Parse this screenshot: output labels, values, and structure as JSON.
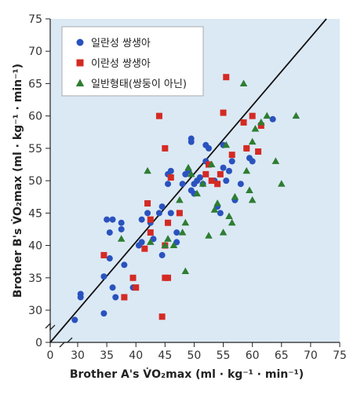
{
  "chart_data": {
    "type": "scatter",
    "xlabel": "Brother A's V̇O₂max (ml · kg⁻¹ · min⁻¹)",
    "ylabel": "Brother B's V̇O₂max (ml · kg⁻¹ · min⁻¹)",
    "xlim": [
      0,
      75
    ],
    "ylim": [
      0,
      75
    ],
    "axis_break": true,
    "x_ticks": [
      "0",
      "30",
      "35",
      "40",
      "45",
      "50",
      "55",
      "60",
      "65",
      "70",
      "75"
    ],
    "y_ticks": [
      "0",
      "30",
      "35",
      "40",
      "45",
      "50",
      "55",
      "60",
      "65",
      "70",
      "75"
    ],
    "grid": false,
    "legend_position": "top-left",
    "identity_line": true,
    "colors": {
      "plot_bg": "#dbe9f5",
      "blue": "#2a52be",
      "red": "#d42a24",
      "green": "#2e7d32"
    },
    "series": [
      {
        "name": "일란성 쌍생아",
        "marker": "circle",
        "color": "#2a52be",
        "points": [
          [
            29.5,
            28.5
          ],
          [
            30.5,
            32.0
          ],
          [
            30.5,
            32.5
          ],
          [
            34.5,
            29.5
          ],
          [
            34.5,
            35.2
          ],
          [
            35.0,
            44.0
          ],
          [
            35.5,
            42.0
          ],
          [
            35.5,
            38.0
          ],
          [
            36.0,
            44.0
          ],
          [
            36.0,
            33.5
          ],
          [
            36.5,
            32.0
          ],
          [
            37.5,
            43.5
          ],
          [
            37.5,
            42.5
          ],
          [
            38.0,
            37.0
          ],
          [
            39.5,
            33.5
          ],
          [
            40.5,
            40.0
          ],
          [
            41.0,
            40.5
          ],
          [
            41.0,
            44.0
          ],
          [
            42.0,
            45.0
          ],
          [
            42.5,
            43.5
          ],
          [
            43.0,
            41.0
          ],
          [
            44.0,
            45.0
          ],
          [
            44.5,
            38.5
          ],
          [
            44.5,
            46.0
          ],
          [
            45.5,
            49.5
          ],
          [
            45.5,
            51.0
          ],
          [
            46.0,
            51.5
          ],
          [
            46.0,
            45.0
          ],
          [
            47.0,
            40.5
          ],
          [
            47.0,
            42.0
          ],
          [
            48.0,
            49.5
          ],
          [
            48.5,
            51.0
          ],
          [
            49.0,
            51.5
          ],
          [
            49.5,
            56.5
          ],
          [
            49.5,
            56.0
          ],
          [
            49.5,
            48.5
          ],
          [
            50.0,
            48.0
          ],
          [
            50.5,
            50.0
          ],
          [
            51.0,
            50.5
          ],
          [
            51.5,
            49.5
          ],
          [
            52.0,
            55.5
          ],
          [
            52.0,
            53.0
          ],
          [
            53.5,
            50.0
          ],
          [
            54.0,
            46.0
          ],
          [
            54.5,
            45.0
          ],
          [
            55.0,
            52.0
          ],
          [
            55.0,
            55.5
          ],
          [
            55.5,
            50.0
          ],
          [
            56.0,
            51.5
          ],
          [
            56.5,
            53.0
          ],
          [
            57.0,
            47.0
          ],
          [
            58.0,
            49.5
          ],
          [
            59.5,
            53.5
          ],
          [
            60.0,
            53.0
          ],
          [
            63.5,
            59.5
          ],
          [
            50.0,
            49.5
          ],
          [
            52.5,
            55.0
          ],
          [
            59.0,
            55.0
          ]
        ]
      },
      {
        "name": "이란성 쌍생아",
        "marker": "square",
        "color": "#d42a24",
        "points": [
          [
            34.5,
            38.5
          ],
          [
            38.0,
            32.0
          ],
          [
            39.5,
            35.0
          ],
          [
            40.0,
            33.5
          ],
          [
            41.5,
            39.5
          ],
          [
            42.0,
            46.5
          ],
          [
            42.5,
            44.0
          ],
          [
            42.5,
            42.0
          ],
          [
            44.0,
            60.0
          ],
          [
            44.5,
            29.0
          ],
          [
            45.0,
            55.0
          ],
          [
            45.0,
            40.0
          ],
          [
            45.0,
            35.0
          ],
          [
            45.5,
            35.0
          ],
          [
            45.5,
            43.5
          ],
          [
            46.0,
            50.5
          ],
          [
            52.0,
            51.0
          ],
          [
            52.5,
            52.5
          ],
          [
            53.0,
            50.0
          ],
          [
            54.0,
            49.5
          ],
          [
            54.5,
            51.0
          ],
          [
            55.0,
            60.5
          ],
          [
            55.5,
            66.0
          ],
          [
            56.5,
            54.0
          ],
          [
            58.5,
            59.0
          ],
          [
            59.0,
            55.0
          ],
          [
            60.0,
            60.0
          ],
          [
            61.0,
            54.5
          ],
          [
            61.5,
            58.5
          ],
          [
            47.5,
            45.0
          ]
        ]
      },
      {
        "name": "일반형태(쌍둥이 아닌)",
        "marker": "triangle",
        "color": "#2e7d32",
        "points": [
          [
            37.5,
            41.0
          ],
          [
            42.0,
            51.5
          ],
          [
            42.5,
            40.5
          ],
          [
            45.0,
            40.0
          ],
          [
            45.5,
            41.0
          ],
          [
            47.5,
            47.0
          ],
          [
            48.0,
            42.0
          ],
          [
            48.5,
            43.5
          ],
          [
            48.5,
            36.0
          ],
          [
            49.0,
            52.0
          ],
          [
            49.5,
            51.0
          ],
          [
            50.5,
            48.0
          ],
          [
            51.5,
            49.5
          ],
          [
            52.5,
            41.5
          ],
          [
            53.0,
            52.5
          ],
          [
            53.5,
            45.5
          ],
          [
            54.0,
            46.5
          ],
          [
            55.0,
            42.0
          ],
          [
            55.5,
            55.5
          ],
          [
            56.0,
            44.5
          ],
          [
            56.5,
            43.5
          ],
          [
            57.0,
            47.5
          ],
          [
            58.5,
            65.0
          ],
          [
            59.0,
            51.5
          ],
          [
            59.5,
            48.5
          ],
          [
            60.0,
            47.0
          ],
          [
            60.0,
            56.0
          ],
          [
            61.5,
            59.0
          ],
          [
            62.5,
            60.0
          ],
          [
            64.0,
            53.0
          ],
          [
            65.0,
            49.5
          ],
          [
            67.5,
            60.0
          ],
          [
            60.5,
            58.0
          ],
          [
            46.5,
            40.0
          ]
        ]
      }
    ]
  }
}
